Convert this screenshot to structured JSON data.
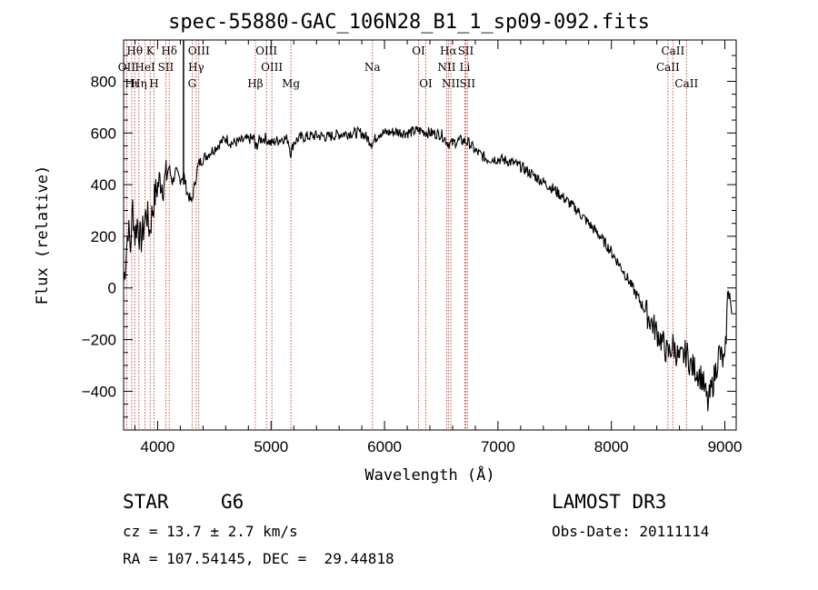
{
  "chart_data": {
    "type": "line",
    "title": "spec-55880-GAC_106N28_B1_1_sp09-092.fits",
    "xlabel": "Wavelength (Å)",
    "ylabel": "Flux (relative)",
    "xlim": [
      3700,
      9100
    ],
    "ylim": [
      -550,
      960
    ],
    "x_ticks": [
      4000,
      5000,
      6000,
      7000,
      8000,
      9000
    ],
    "y_ticks": [
      -400,
      -200,
      0,
      200,
      400,
      600,
      800
    ],
    "x_tick_labels": [
      "4000",
      "5000",
      "6000",
      "7000",
      "8000",
      "9000"
    ],
    "y_tick_labels": [
      "−400",
      "−200",
      "0",
      "200",
      "400",
      "600",
      "800"
    ],
    "series": [
      {
        "name": "flux",
        "x": [
          3700,
          3720,
          3740,
          3760,
          3780,
          3800,
          3820,
          3850,
          3880,
          3900,
          3930,
          3960,
          3990,
          4020,
          4050,
          4080,
          4100,
          4130,
          4160,
          4200,
          4230,
          4260,
          4300,
          4330,
          4360,
          4400,
          4450,
          4500,
          4550,
          4600,
          4650,
          4700,
          4750,
          4800,
          4850,
          4861,
          4900,
          4950,
          5000,
          5050,
          5100,
          5150,
          5175,
          5200,
          5250,
          5300,
          5400,
          5500,
          5600,
          5700,
          5800,
          5893,
          5950,
          6000,
          6100,
          6200,
          6300,
          6400,
          6500,
          6563,
          6600,
          6650,
          6700,
          6750,
          6800,
          6900,
          7000,
          7100,
          7200,
          7300,
          7400,
          7500,
          7600,
          7700,
          7800,
          7900,
          8000,
          8100,
          8200,
          8300,
          8400,
          8450,
          8498,
          8542,
          8600,
          8662,
          8700,
          8750,
          8800,
          8850,
          8900,
          8950,
          9000,
          9030,
          9060
        ],
        "y": [
          20,
          120,
          240,
          150,
          320,
          200,
          260,
          180,
          240,
          300,
          220,
          320,
          380,
          420,
          400,
          440,
          470,
          410,
          450,
          420,
          440,
          370,
          330,
          410,
          480,
          500,
          520,
          540,
          560,
          580,
          560,
          565,
          570,
          575,
          580,
          540,
          575,
          580,
          560,
          570,
          580,
          575,
          520,
          565,
          580,
          585,
          590,
          585,
          595,
          600,
          600,
          560,
          600,
          600,
          605,
          600,
          610,
          600,
          595,
          560,
          560,
          570,
          570,
          560,
          530,
          500,
          500,
          490,
          470,
          440,
          410,
          380,
          340,
          300,
          250,
          200,
          140,
          70,
          -10,
          -90,
          -170,
          -210,
          -260,
          -220,
          -280,
          -250,
          -300,
          -320,
          -350,
          -450,
          -360,
          -250,
          -300,
          20,
          -100
        ]
      }
    ],
    "lines": {
      "top": [
        {
          "label": "Hθ",
          "x": 3798
        },
        {
          "label": "K",
          "x": 3934
        },
        {
          "label": "Hδ",
          "x": 4102
        },
        {
          "label": "OIII",
          "x": 4363
        },
        {
          "label": "OIII",
          "x": 4959
        },
        {
          "label": "OI",
          "x": 6300
        },
        {
          "label": "Hα",
          "x": 6563
        },
        {
          "label": "SII",
          "x": 6716
        },
        {
          "label": "CaII",
          "x": 8542
        }
      ],
      "middle": [
        {
          "label": "OII",
          "x": 3727
        },
        {
          "label": "HeI",
          "x": 3889
        },
        {
          "label": "SII",
          "x": 4072
        },
        {
          "label": "Hγ",
          "x": 4340
        },
        {
          "label": "OIII",
          "x": 5007
        },
        {
          "label": "Na",
          "x": 5893
        },
        {
          "label": "NII",
          "x": 6548
        },
        {
          "label": "Li",
          "x": 6708
        },
        {
          "label": "CaII",
          "x": 8498
        }
      ],
      "bottom": [
        {
          "label": "Hι",
          "x": 3771
        },
        {
          "label": "Hη",
          "x": 3835
        },
        {
          "label": "H",
          "x": 3968
        },
        {
          "label": "G",
          "x": 4304
        },
        {
          "label": "Hβ",
          "x": 4861
        },
        {
          "label": "Mg",
          "x": 5175
        },
        {
          "label": "OI",
          "x": 6364
        },
        {
          "label": "NII",
          "x": 6584
        },
        {
          "label": "SII",
          "x": 6731
        },
        {
          "label": "CaII",
          "x": 8662
        }
      ]
    },
    "marker_line_x": 4228
  },
  "info": {
    "object_class": "STAR",
    "subclass": "G6",
    "survey": "LAMOST DR3",
    "redshift": "cz = 13.7 ± 2.7 km/s",
    "obs_date": "Obs-Date: 20111114",
    "coords": "RA = 107.54145, DEC =  29.44818"
  },
  "colors": {
    "line_marker": "#c0392b",
    "spectrum": "#000000"
  }
}
